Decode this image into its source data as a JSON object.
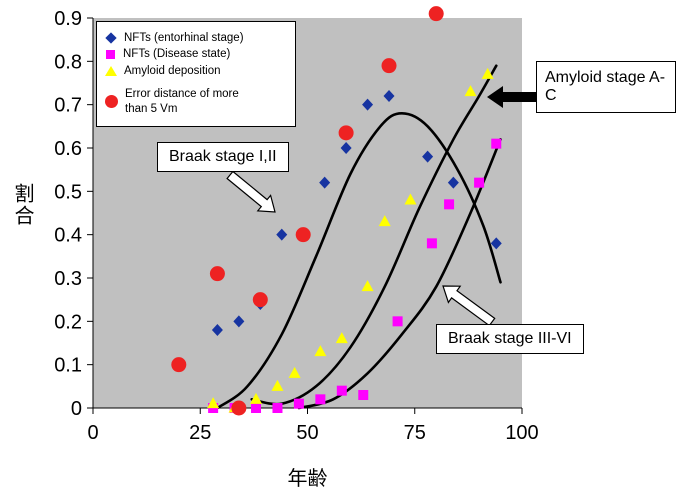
{
  "chart_data": {
    "type": "scatter",
    "title": "",
    "xlabel": "年齢",
    "ylabel": "割合",
    "xlim": [
      0,
      100
    ],
    "ylim": [
      0,
      0.9
    ],
    "xticks": [
      "0",
      "25",
      "50",
      "75",
      "100"
    ],
    "yticks": [
      "0",
      "0.1",
      "0.2",
      "0.3",
      "0.4",
      "0.5",
      "0.6",
      "0.7",
      "0.8",
      "0.9"
    ],
    "plot_bg": "#c0c0c0",
    "curve_color": "#000000",
    "grid": "off",
    "legend_position": "top-left-inside",
    "series": [
      {
        "name": "NFTs (entorhinal stage)",
        "marker": "diamond",
        "color": "#1734a1",
        "points": [
          [
            29,
            0.18
          ],
          [
            34,
            0.2
          ],
          [
            39,
            0.24
          ],
          [
            44,
            0.4
          ],
          [
            49,
            0.4
          ],
          [
            54,
            0.52
          ],
          [
            59,
            0.6
          ],
          [
            64,
            0.7
          ],
          [
            69,
            0.72
          ],
          [
            78,
            0.58
          ],
          [
            84,
            0.52
          ],
          [
            94,
            0.38
          ]
        ]
      },
      {
        "name": "NFTs (Disease state)",
        "marker": "square",
        "color": "#ff00ff",
        "points": [
          [
            28,
            0.0
          ],
          [
            33,
            0.0
          ],
          [
            38,
            0.0
          ],
          [
            43,
            0.0
          ],
          [
            48,
            0.01
          ],
          [
            53,
            0.02
          ],
          [
            58,
            0.04
          ],
          [
            63,
            0.03
          ],
          [
            71,
            0.2
          ],
          [
            79,
            0.38
          ],
          [
            83,
            0.47
          ],
          [
            90,
            0.52
          ],
          [
            94,
            0.61
          ]
        ]
      },
      {
        "name": "Amyloid deposition",
        "marker": "triangle",
        "color": "#ffff00",
        "points": [
          [
            28,
            0.01
          ],
          [
            33,
            0.0
          ],
          [
            38,
            0.02
          ],
          [
            43,
            0.05
          ],
          [
            47,
            0.08
          ],
          [
            53,
            0.13
          ],
          [
            58,
            0.16
          ],
          [
            64,
            0.28
          ],
          [
            68,
            0.43
          ],
          [
            74,
            0.48
          ],
          [
            88,
            0.73
          ],
          [
            92,
            0.77
          ]
        ]
      },
      {
        "name": "Error distance of more than 5 Vm",
        "marker": "circle",
        "color": "#ee2222",
        "points": [
          [
            20,
            0.1
          ],
          [
            29,
            0.31
          ],
          [
            34,
            0.0
          ],
          [
            39,
            0.25
          ],
          [
            49,
            0.4
          ],
          [
            59,
            0.635
          ],
          [
            69,
            0.79
          ],
          [
            80,
            0.91
          ]
        ]
      }
    ],
    "curves": [
      {
        "id": "braak-1-2",
        "label": "Braak stage I,II",
        "points": [
          [
            29,
            0.0
          ],
          [
            36,
            0.05
          ],
          [
            44,
            0.17
          ],
          [
            52,
            0.35
          ],
          [
            60,
            0.54
          ],
          [
            67,
            0.65
          ],
          [
            72,
            0.68
          ],
          [
            78,
            0.65
          ],
          [
            85,
            0.55
          ],
          [
            91,
            0.42
          ],
          [
            95,
            0.29
          ]
        ]
      },
      {
        "id": "amyloid-a-c",
        "label": "Amyloid stage A-C",
        "points": [
          [
            37,
            0.02
          ],
          [
            44,
            0.01
          ],
          [
            52,
            0.05
          ],
          [
            60,
            0.14
          ],
          [
            68,
            0.28
          ],
          [
            76,
            0.46
          ],
          [
            84,
            0.62
          ],
          [
            90,
            0.72
          ],
          [
            94,
            0.79
          ]
        ]
      },
      {
        "id": "braak-3-6",
        "label": "Braak stage III-VI",
        "points": [
          [
            48,
            0.0
          ],
          [
            56,
            0.02
          ],
          [
            64,
            0.08
          ],
          [
            72,
            0.17
          ],
          [
            80,
            0.28
          ],
          [
            88,
            0.45
          ],
          [
            95,
            0.62
          ]
        ]
      }
    ],
    "annotations": {
      "braak_1_2": "Braak stage I,II",
      "amyloid_a_c": "Amyloid stage A-C",
      "braak_3_6": "Braak stage III-VI"
    }
  }
}
